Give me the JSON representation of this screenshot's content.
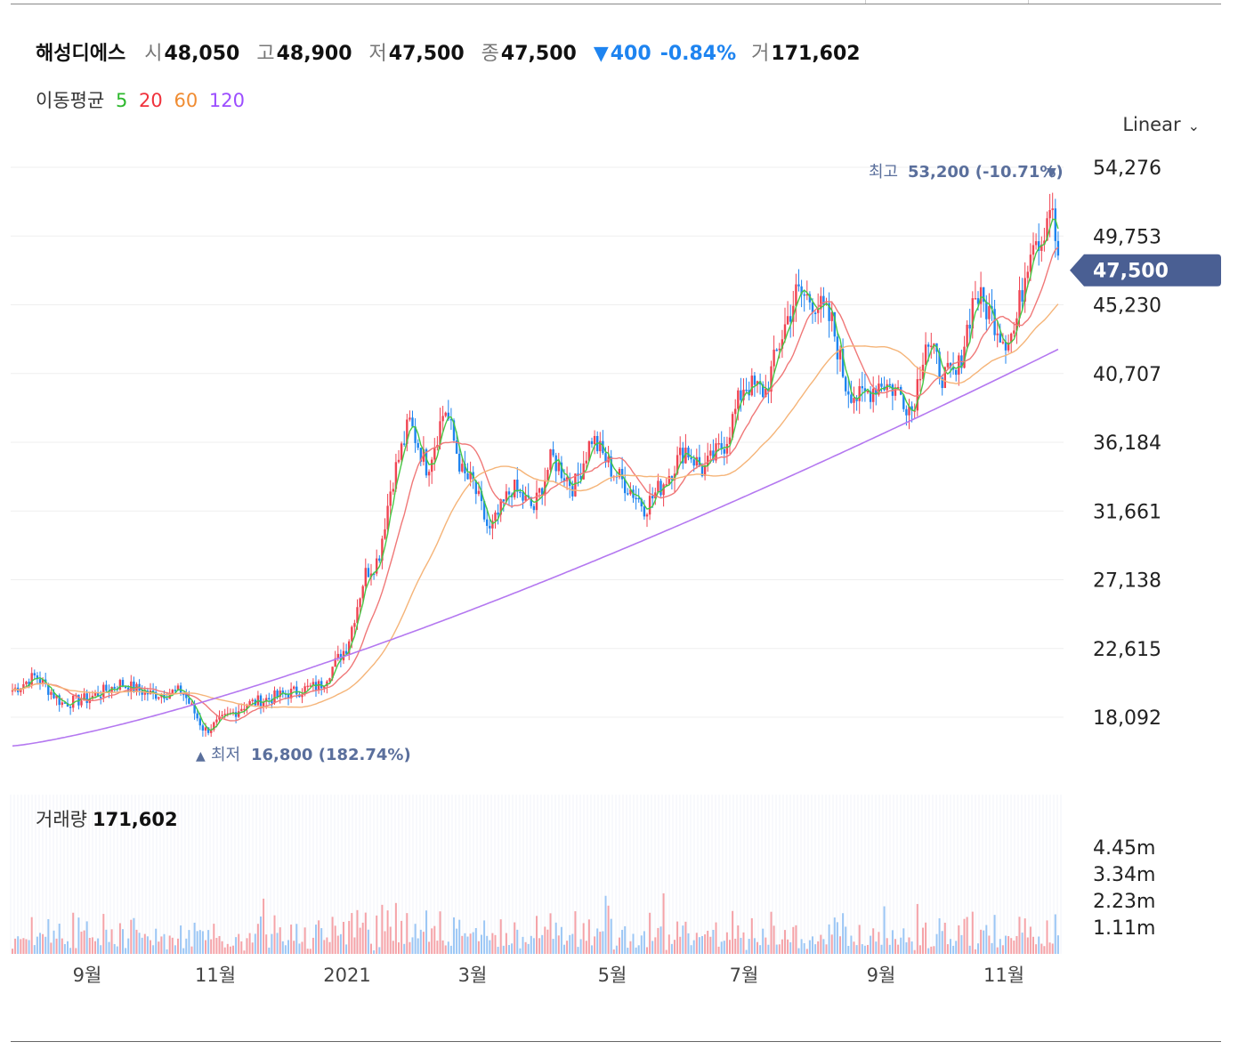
{
  "stock": {
    "name": "해성디에스",
    "open_label": "시",
    "open": "48,050",
    "high_label": "고",
    "high": "48,900",
    "low_label": "저",
    "low": "47,500",
    "close_label": "종",
    "close": "47,500",
    "change_arrow": "▼",
    "change": "400",
    "change_pct": "-0.84%",
    "volume_label": "거",
    "volume": "171,602"
  },
  "moving_avg": {
    "label": "이동평균",
    "periods": [
      {
        "text": "5",
        "color": "#2db82d"
      },
      {
        "text": "20",
        "color": "#f0323c"
      },
      {
        "text": "60",
        "color": "#f08c32"
      },
      {
        "text": "120",
        "color": "#9b4dff"
      }
    ]
  },
  "scale": {
    "label": "Linear",
    "icon": "chevron-down-icon"
  },
  "colors": {
    "up": "#f04452",
    "down": "#1e84f0",
    "ma5": "#46c846",
    "ma20": "#f07878",
    "ma60": "#f5b478",
    "ma120": "#b478f0",
    "price_badge": "#4a5f93"
  },
  "chart_data": {
    "type": "candlestick",
    "title": "해성디에스",
    "x_ticks": [
      "9월",
      "11월",
      "2021",
      "3월",
      "5월",
      "7월",
      "9월",
      "11월"
    ],
    "y_ticks": [
      "54,276",
      "49,753",
      "45,230",
      "40,707",
      "36,184",
      "31,661",
      "27,138",
      "22,615",
      "18,092"
    ],
    "y_tick_values": [
      54276,
      49753,
      45230,
      40707,
      36184,
      31661,
      27138,
      22615,
      18092
    ],
    "ylim": [
      15800,
      55400
    ],
    "current_price_label": "47,500",
    "current_price": 47500,
    "max_annotation": {
      "label": "최고",
      "value": "53,200 (-10.71%)",
      "arrow": "▼"
    },
    "min_annotation": {
      "label": "최저",
      "value": "16,800 (182.74%)",
      "arrow": "▲"
    },
    "series": [
      {
        "name": "close",
        "x": [
          "2020-08",
          "2020-09",
          "2020-10",
          "2020-11",
          "2020-12",
          "2021-01",
          "2021-02",
          "2021-03",
          "2021-04",
          "2021-05",
          "2021-06",
          "2021-07",
          "2021-08",
          "2021-09",
          "2021-10",
          "2021-11",
          "2021-12"
        ],
        "values": [
          19800,
          19300,
          19600,
          17500,
          19500,
          25500,
          37500,
          30500,
          36000,
          33500,
          39000,
          45500,
          41500,
          39500,
          44800,
          52500,
          47500
        ]
      },
      {
        "name": "MA120",
        "start": 16200,
        "end": 42300
      }
    ],
    "volume": {
      "title": "거래량",
      "current": "171,602",
      "y_ticks": [
        "4.45m",
        "3.34m",
        "2.23m",
        "1.11m"
      ],
      "y_tick_values": [
        4450000,
        3340000,
        2230000,
        1110000
      ]
    }
  }
}
